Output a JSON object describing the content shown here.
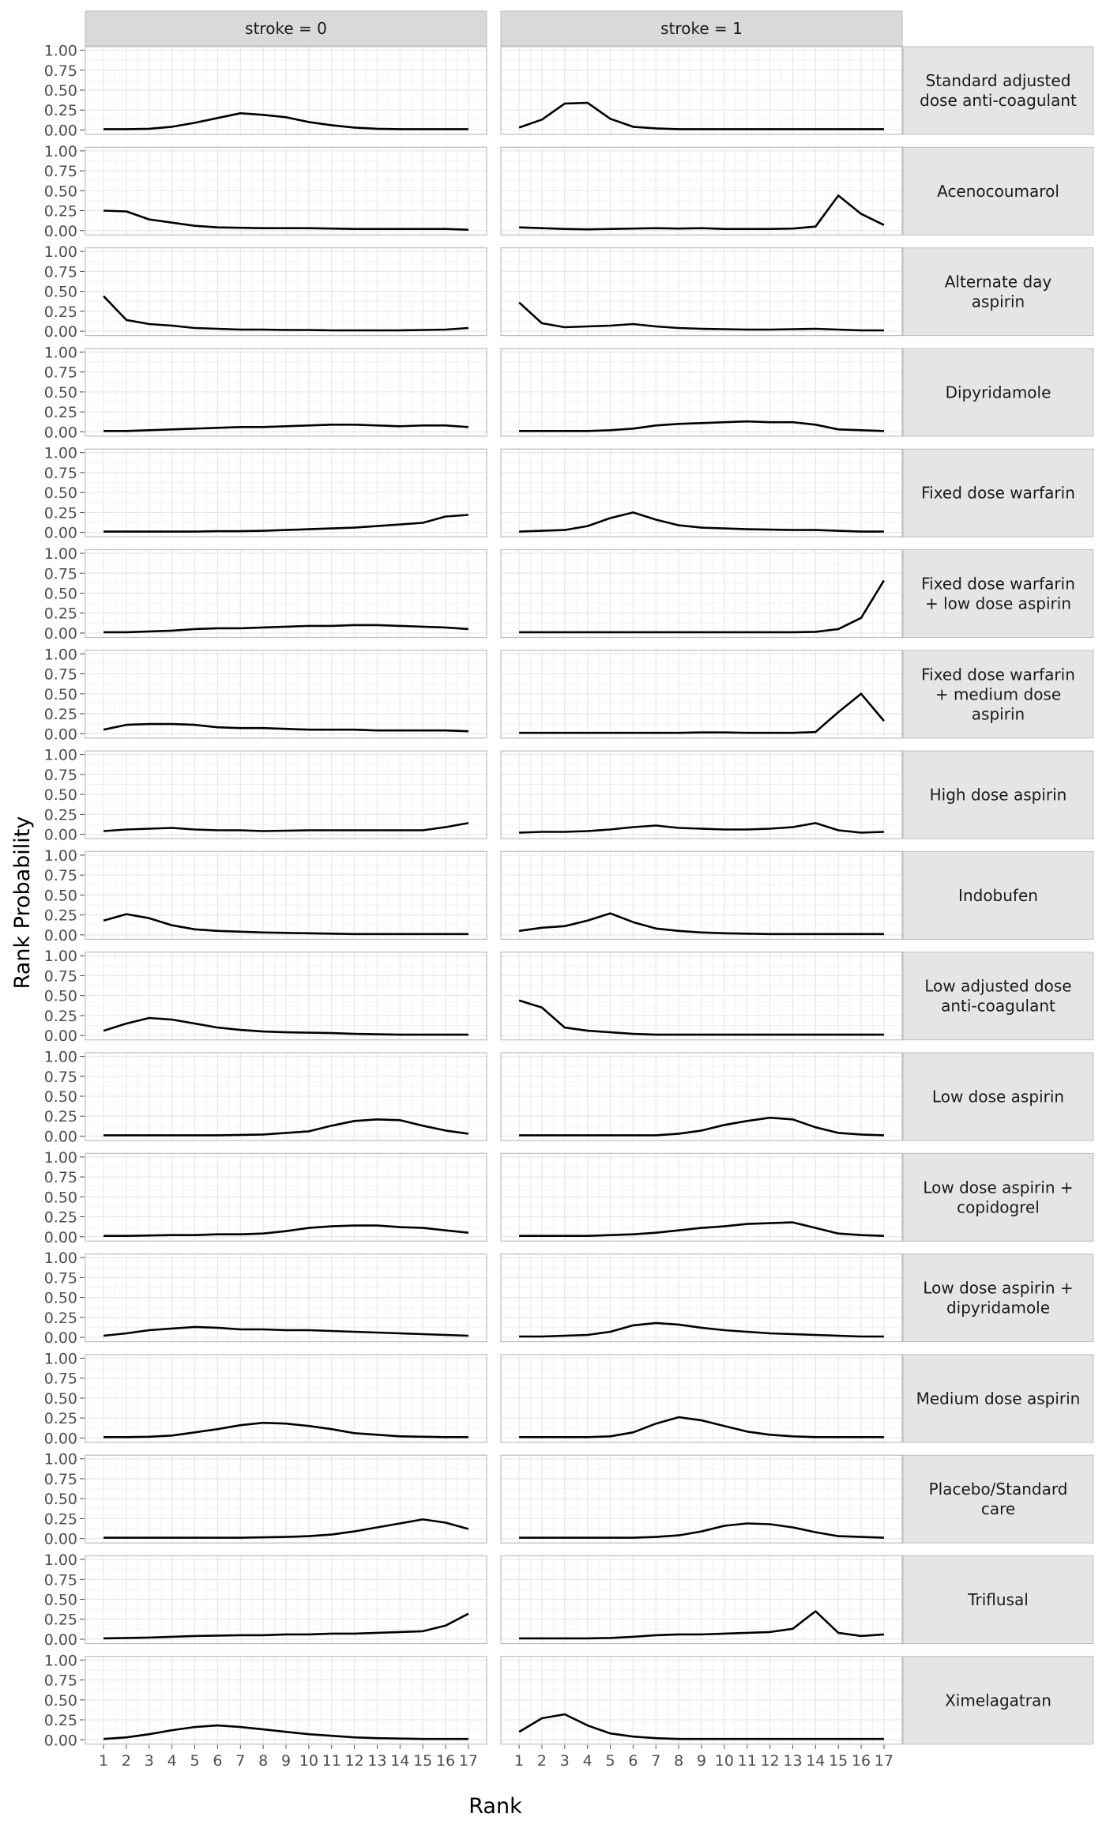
{
  "chart_data": {
    "type": "line",
    "xlabel": "Rank",
    "ylabel": "Rank Probability",
    "xlim": [
      1,
      17
    ],
    "ylim": [
      0,
      1
    ],
    "x_ticks": [
      1,
      2,
      3,
      4,
      5,
      6,
      7,
      8,
      9,
      10,
      11,
      12,
      13,
      14,
      15,
      16,
      17
    ],
    "y_ticks": [
      0.0,
      0.25,
      0.5,
      0.75,
      1.0
    ],
    "y_tick_labels": [
      "0.00",
      "0.25",
      "0.50",
      "0.75",
      "1.00"
    ],
    "grid": true,
    "legend": "none",
    "columns": [
      "stroke = 0",
      "stroke = 1"
    ],
    "rows": [
      "Standard adjusted dose anti-coagulant",
      "Acenocoumarol",
      "Alternate day aspirin",
      "Dipyridamole",
      "Fixed dose warfarin",
      "Fixed dose warfarin + low dose aspirin",
      "Fixed dose warfarin + medium dose aspirin",
      "High dose aspirin",
      "Indobufen",
      "Low adjusted dose anti-coagulant",
      "Low dose aspirin",
      "Low dose aspirin + copidogrel",
      "Low dose aspirin + dipyridamole",
      "Medium dose aspirin",
      "Placebo/Standard care",
      "Triflusal",
      "Ximelagatran"
    ],
    "row_label_lines": [
      [
        "Standard adjusted",
        "dose anti-coagulant"
      ],
      [
        "Acenocoumarol"
      ],
      [
        "Alternate day",
        "aspirin"
      ],
      [
        "Dipyridamole"
      ],
      [
        "Fixed dose warfarin"
      ],
      [
        "Fixed dose warfarin",
        "+ low dose aspirin"
      ],
      [
        "Fixed dose warfarin",
        "+ medium dose",
        "aspirin"
      ],
      [
        "High dose aspirin"
      ],
      [
        "Indobufen"
      ],
      [
        "Low adjusted dose",
        "anti-coagulant"
      ],
      [
        "Low dose aspirin"
      ],
      [
        "Low dose aspirin +",
        "copidogrel"
      ],
      [
        "Low dose aspirin +",
        "dipyridamole"
      ],
      [
        "Medium dose aspirin"
      ],
      [
        "Placebo/Standard",
        "care"
      ],
      [
        "Triflusal"
      ],
      [
        "Ximelagatran"
      ]
    ],
    "panels": [
      {
        "row": 0,
        "stroke0": [
          0.01,
          0.01,
          0.015,
          0.04,
          0.09,
          0.15,
          0.21,
          0.19,
          0.16,
          0.1,
          0.06,
          0.03,
          0.015,
          0.01,
          0.01,
          0.01,
          0.01
        ],
        "stroke1": [
          0.03,
          0.13,
          0.33,
          0.34,
          0.14,
          0.04,
          0.02,
          0.01,
          0.01,
          0.01,
          0.01,
          0.01,
          0.01,
          0.01,
          0.01,
          0.01,
          0.01
        ]
      },
      {
        "row": 1,
        "stroke0": [
          0.25,
          0.24,
          0.14,
          0.1,
          0.06,
          0.04,
          0.035,
          0.03,
          0.03,
          0.03,
          0.025,
          0.02,
          0.02,
          0.02,
          0.02,
          0.02,
          0.01
        ],
        "stroke1": [
          0.04,
          0.03,
          0.02,
          0.015,
          0.02,
          0.025,
          0.03,
          0.025,
          0.03,
          0.02,
          0.02,
          0.02,
          0.025,
          0.05,
          0.44,
          0.21,
          0.07
        ]
      },
      {
        "row": 2,
        "stroke0": [
          0.44,
          0.14,
          0.09,
          0.07,
          0.04,
          0.03,
          0.02,
          0.02,
          0.015,
          0.015,
          0.01,
          0.01,
          0.01,
          0.01,
          0.015,
          0.02,
          0.04
        ],
        "stroke1": [
          0.36,
          0.1,
          0.05,
          0.06,
          0.07,
          0.09,
          0.06,
          0.04,
          0.03,
          0.025,
          0.02,
          0.02,
          0.025,
          0.03,
          0.02,
          0.01,
          0.01
        ]
      },
      {
        "row": 3,
        "stroke0": [
          0.01,
          0.01,
          0.02,
          0.03,
          0.04,
          0.05,
          0.06,
          0.06,
          0.07,
          0.08,
          0.09,
          0.09,
          0.08,
          0.07,
          0.08,
          0.08,
          0.06
        ],
        "stroke1": [
          0.01,
          0.01,
          0.01,
          0.01,
          0.02,
          0.04,
          0.08,
          0.1,
          0.11,
          0.12,
          0.13,
          0.12,
          0.12,
          0.09,
          0.03,
          0.02,
          0.01
        ]
      },
      {
        "row": 4,
        "stroke0": [
          0.01,
          0.01,
          0.01,
          0.01,
          0.01,
          0.015,
          0.015,
          0.02,
          0.03,
          0.04,
          0.05,
          0.06,
          0.08,
          0.1,
          0.12,
          0.2,
          0.22
        ],
        "stroke1": [
          0.01,
          0.02,
          0.03,
          0.08,
          0.18,
          0.25,
          0.16,
          0.09,
          0.06,
          0.05,
          0.04,
          0.035,
          0.03,
          0.03,
          0.02,
          0.01,
          0.01
        ]
      },
      {
        "row": 5,
        "stroke0": [
          0.01,
          0.01,
          0.02,
          0.03,
          0.05,
          0.06,
          0.06,
          0.07,
          0.08,
          0.09,
          0.09,
          0.1,
          0.1,
          0.09,
          0.08,
          0.07,
          0.05
        ],
        "stroke1": [
          0.01,
          0.01,
          0.01,
          0.01,
          0.01,
          0.01,
          0.01,
          0.01,
          0.01,
          0.01,
          0.01,
          0.01,
          0.01,
          0.015,
          0.05,
          0.19,
          0.66
        ]
      },
      {
        "row": 6,
        "stroke0": [
          0.05,
          0.11,
          0.12,
          0.12,
          0.11,
          0.08,
          0.07,
          0.07,
          0.06,
          0.05,
          0.05,
          0.05,
          0.04,
          0.04,
          0.04,
          0.04,
          0.03
        ],
        "stroke1": [
          0.01,
          0.01,
          0.01,
          0.01,
          0.01,
          0.01,
          0.01,
          0.01,
          0.015,
          0.015,
          0.01,
          0.01,
          0.01,
          0.02,
          0.27,
          0.5,
          0.16
        ]
      },
      {
        "row": 7,
        "stroke0": [
          0.04,
          0.06,
          0.07,
          0.08,
          0.06,
          0.05,
          0.05,
          0.04,
          0.045,
          0.05,
          0.05,
          0.05,
          0.05,
          0.05,
          0.05,
          0.09,
          0.14
        ],
        "stroke1": [
          0.02,
          0.03,
          0.03,
          0.04,
          0.06,
          0.09,
          0.11,
          0.08,
          0.07,
          0.06,
          0.06,
          0.07,
          0.09,
          0.14,
          0.05,
          0.02,
          0.03
        ]
      },
      {
        "row": 8,
        "stroke0": [
          0.18,
          0.26,
          0.21,
          0.12,
          0.07,
          0.05,
          0.04,
          0.03,
          0.025,
          0.02,
          0.015,
          0.01,
          0.01,
          0.01,
          0.01,
          0.01,
          0.01
        ],
        "stroke1": [
          0.05,
          0.09,
          0.11,
          0.18,
          0.27,
          0.16,
          0.08,
          0.05,
          0.03,
          0.02,
          0.015,
          0.01,
          0.01,
          0.01,
          0.01,
          0.01,
          0.01
        ]
      },
      {
        "row": 9,
        "stroke0": [
          0.06,
          0.15,
          0.22,
          0.2,
          0.15,
          0.1,
          0.07,
          0.05,
          0.04,
          0.035,
          0.03,
          0.02,
          0.015,
          0.01,
          0.01,
          0.01,
          0.01
        ],
        "stroke1": [
          0.44,
          0.35,
          0.1,
          0.06,
          0.04,
          0.02,
          0.01,
          0.01,
          0.01,
          0.01,
          0.01,
          0.01,
          0.01,
          0.01,
          0.01,
          0.01,
          0.01
        ]
      },
      {
        "row": 10,
        "stroke0": [
          0.01,
          0.01,
          0.01,
          0.01,
          0.01,
          0.01,
          0.015,
          0.02,
          0.04,
          0.06,
          0.13,
          0.19,
          0.21,
          0.2,
          0.13,
          0.07,
          0.03
        ],
        "stroke1": [
          0.01,
          0.01,
          0.01,
          0.01,
          0.01,
          0.01,
          0.01,
          0.03,
          0.07,
          0.14,
          0.19,
          0.23,
          0.21,
          0.11,
          0.04,
          0.02,
          0.01
        ]
      },
      {
        "row": 11,
        "stroke0": [
          0.01,
          0.01,
          0.015,
          0.02,
          0.02,
          0.03,
          0.03,
          0.04,
          0.07,
          0.11,
          0.13,
          0.14,
          0.14,
          0.12,
          0.11,
          0.08,
          0.05
        ],
        "stroke1": [
          0.01,
          0.01,
          0.01,
          0.01,
          0.02,
          0.03,
          0.05,
          0.08,
          0.11,
          0.13,
          0.16,
          0.17,
          0.18,
          0.11,
          0.04,
          0.02,
          0.01
        ]
      },
      {
        "row": 12,
        "stroke0": [
          0.02,
          0.05,
          0.09,
          0.11,
          0.13,
          0.12,
          0.1,
          0.1,
          0.09,
          0.09,
          0.08,
          0.07,
          0.06,
          0.05,
          0.04,
          0.03,
          0.02
        ],
        "stroke1": [
          0.01,
          0.01,
          0.02,
          0.03,
          0.07,
          0.15,
          0.18,
          0.16,
          0.12,
          0.09,
          0.07,
          0.05,
          0.04,
          0.03,
          0.02,
          0.01,
          0.01
        ]
      },
      {
        "row": 13,
        "stroke0": [
          0.01,
          0.01,
          0.015,
          0.03,
          0.07,
          0.11,
          0.16,
          0.19,
          0.18,
          0.15,
          0.11,
          0.06,
          0.04,
          0.02,
          0.015,
          0.01,
          0.01
        ],
        "stroke1": [
          0.01,
          0.01,
          0.01,
          0.01,
          0.02,
          0.07,
          0.18,
          0.26,
          0.22,
          0.15,
          0.08,
          0.04,
          0.02,
          0.01,
          0.01,
          0.01,
          0.01
        ]
      },
      {
        "row": 14,
        "stroke0": [
          0.01,
          0.01,
          0.01,
          0.01,
          0.01,
          0.01,
          0.01,
          0.015,
          0.02,
          0.03,
          0.05,
          0.09,
          0.14,
          0.19,
          0.24,
          0.2,
          0.12
        ],
        "stroke1": [
          0.01,
          0.01,
          0.01,
          0.01,
          0.01,
          0.01,
          0.02,
          0.04,
          0.09,
          0.16,
          0.19,
          0.18,
          0.14,
          0.08,
          0.03,
          0.02,
          0.01
        ]
      },
      {
        "row": 15,
        "stroke0": [
          0.01,
          0.015,
          0.02,
          0.03,
          0.04,
          0.045,
          0.05,
          0.05,
          0.06,
          0.06,
          0.07,
          0.07,
          0.08,
          0.09,
          0.1,
          0.17,
          0.32
        ],
        "stroke1": [
          0.01,
          0.01,
          0.01,
          0.01,
          0.015,
          0.03,
          0.05,
          0.06,
          0.06,
          0.07,
          0.08,
          0.09,
          0.13,
          0.35,
          0.08,
          0.04,
          0.06
        ]
      },
      {
        "row": 16,
        "stroke0": [
          0.01,
          0.03,
          0.07,
          0.12,
          0.16,
          0.18,
          0.16,
          0.13,
          0.1,
          0.07,
          0.05,
          0.03,
          0.02,
          0.015,
          0.01,
          0.01,
          0.01
        ],
        "stroke1": [
          0.1,
          0.27,
          0.32,
          0.18,
          0.08,
          0.04,
          0.02,
          0.01,
          0.01,
          0.01,
          0.01,
          0.01,
          0.01,
          0.01,
          0.01,
          0.01,
          0.01
        ]
      }
    ]
  }
}
